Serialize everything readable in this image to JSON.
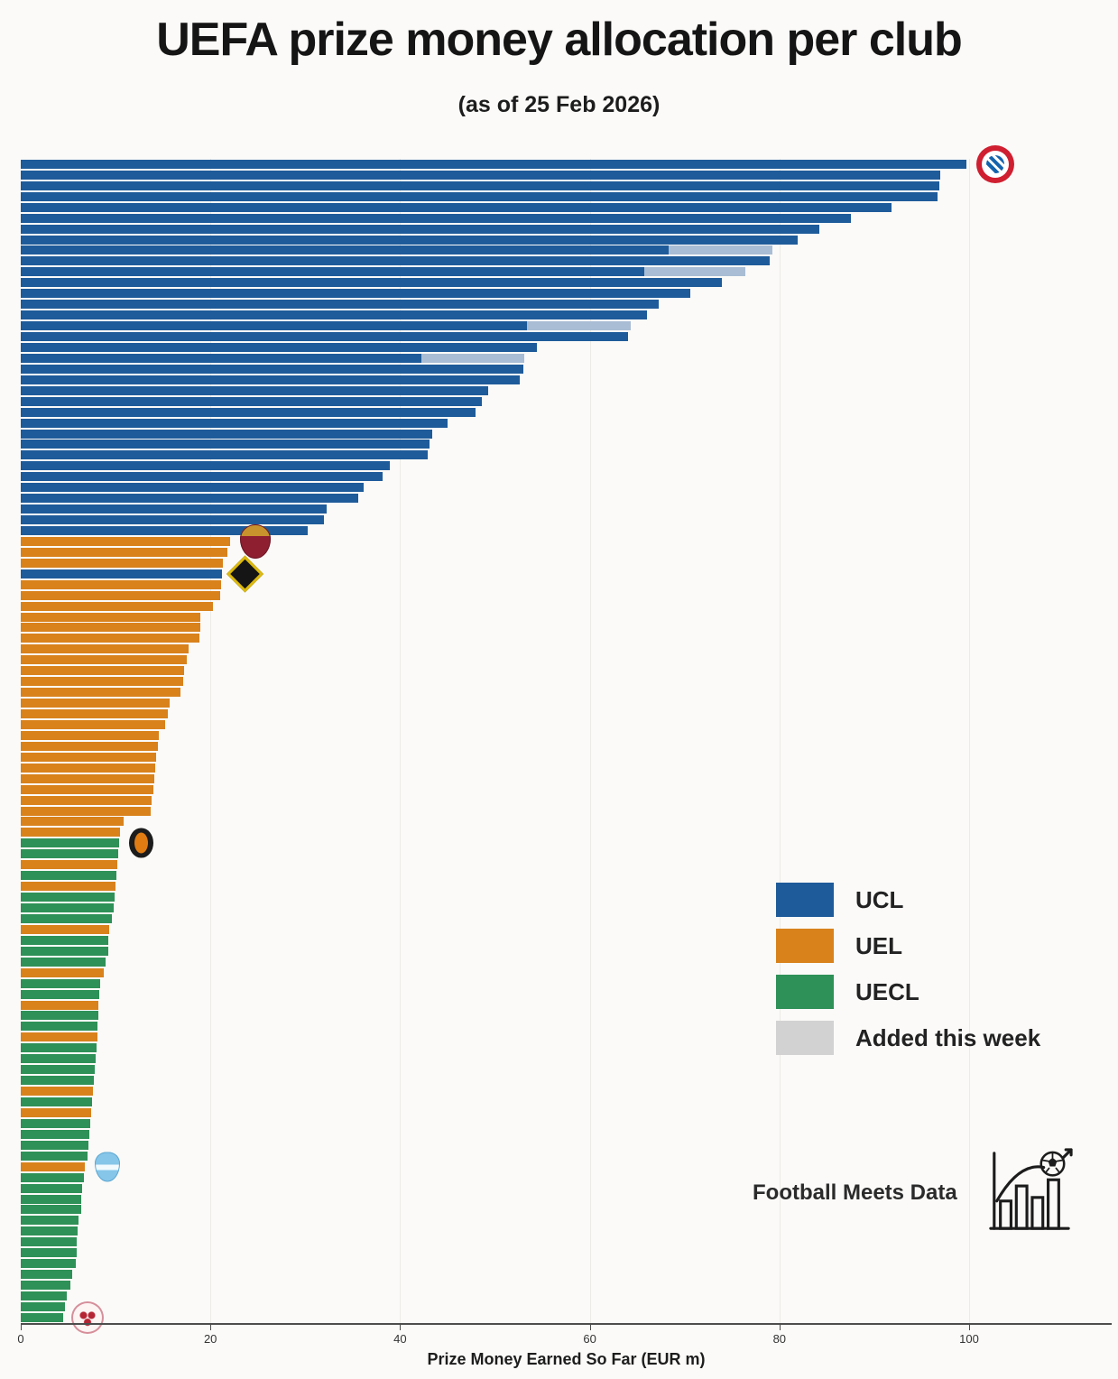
{
  "title": "UEFA prize money allocation per club",
  "subtitle": "(as of 25 Feb 2026)",
  "axis": {
    "label": "Prize Money Earned So Far (EUR m)",
    "ticks": [
      0,
      20,
      40,
      60,
      80,
      100
    ],
    "max": 115
  },
  "colors": {
    "ucl": "#1e5b9a",
    "uel": "#d9821c",
    "uecl": "#2e9157",
    "added": "#d2d2d2",
    "added_on_bar": "#a9bdd4"
  },
  "legend": [
    {
      "key": "ucl",
      "label": "UCL"
    },
    {
      "key": "uel",
      "label": "UEL"
    },
    {
      "key": "uecl",
      "label": "UECL"
    },
    {
      "key": "added",
      "label": "Added this week"
    }
  ],
  "credit": {
    "text": "Football Meets Data"
  },
  "chart_data": {
    "type": "bar",
    "orientation": "horizontal",
    "title": "UEFA prize money allocation per club",
    "subtitle": "(as of 25 Feb 2026)",
    "xlabel": "Prize Money Earned So Far (EUR m)",
    "xlim": [
      0,
      115
    ],
    "grid": "vertical-faint",
    "legend_position": "center-right",
    "series_note": "c = competition color key; v = total prize money (EUR m); b = value before this week's gray 'Added this week' segment; logo = club crest displayed beside bar",
    "bars": [
      {
        "c": "ucl",
        "v": 99.7,
        "logo": "bayern-munich"
      },
      {
        "c": "ucl",
        "v": 97.0
      },
      {
        "c": "ucl",
        "v": 96.9
      },
      {
        "c": "ucl",
        "v": 96.7
      },
      {
        "c": "ucl",
        "v": 91.8
      },
      {
        "c": "ucl",
        "v": 87.5
      },
      {
        "c": "ucl",
        "v": 84.2
      },
      {
        "c": "ucl",
        "v": 81.9
      },
      {
        "c": "ucl",
        "v": 79.3,
        "b": 68.3
      },
      {
        "c": "ucl",
        "v": 79.0
      },
      {
        "c": "ucl",
        "v": 76.4,
        "b": 65.7
      },
      {
        "c": "ucl",
        "v": 73.9
      },
      {
        "c": "ucl",
        "v": 70.6
      },
      {
        "c": "ucl",
        "v": 67.3
      },
      {
        "c": "ucl",
        "v": 66.0
      },
      {
        "c": "ucl",
        "v": 64.3,
        "b": 53.4
      },
      {
        "c": "ucl",
        "v": 64.0
      },
      {
        "c": "ucl",
        "v": 54.4
      },
      {
        "c": "ucl",
        "v": 53.1,
        "b": 42.2
      },
      {
        "c": "ucl",
        "v": 53.0
      },
      {
        "c": "ucl",
        "v": 52.6
      },
      {
        "c": "ucl",
        "v": 49.3
      },
      {
        "c": "ucl",
        "v": 48.6
      },
      {
        "c": "ucl",
        "v": 48.0
      },
      {
        "c": "ucl",
        "v": 45.0
      },
      {
        "c": "ucl",
        "v": 43.4
      },
      {
        "c": "ucl",
        "v": 43.1
      },
      {
        "c": "ucl",
        "v": 42.9
      },
      {
        "c": "ucl",
        "v": 38.9
      },
      {
        "c": "ucl",
        "v": 38.2
      },
      {
        "c": "ucl",
        "v": 36.2
      },
      {
        "c": "ucl",
        "v": 35.6
      },
      {
        "c": "ucl",
        "v": 32.3
      },
      {
        "c": "ucl",
        "v": 32.0
      },
      {
        "c": "ucl",
        "v": 30.3
      },
      {
        "c": "uel",
        "v": 22.1,
        "logo": "as-roma"
      },
      {
        "c": "uel",
        "v": 21.8
      },
      {
        "c": "uel",
        "v": 21.3
      },
      {
        "c": "ucl",
        "v": 21.2,
        "logo": "young-boys"
      },
      {
        "c": "uel",
        "v": 21.1
      },
      {
        "c": "uel",
        "v": 21.0
      },
      {
        "c": "uel",
        "v": 20.3
      },
      {
        "c": "uel",
        "v": 18.9
      },
      {
        "c": "uel",
        "v": 18.9
      },
      {
        "c": "uel",
        "v": 18.8
      },
      {
        "c": "uel",
        "v": 17.7
      },
      {
        "c": "uel",
        "v": 17.5
      },
      {
        "c": "uel",
        "v": 17.2
      },
      {
        "c": "uel",
        "v": 17.1
      },
      {
        "c": "uel",
        "v": 16.8
      },
      {
        "c": "uel",
        "v": 15.7
      },
      {
        "c": "uel",
        "v": 15.5
      },
      {
        "c": "uel",
        "v": 15.2
      },
      {
        "c": "uel",
        "v": 14.6
      },
      {
        "c": "uel",
        "v": 14.5
      },
      {
        "c": "uel",
        "v": 14.3
      },
      {
        "c": "uel",
        "v": 14.2
      },
      {
        "c": "uel",
        "v": 14.1
      },
      {
        "c": "uel",
        "v": 14.0
      },
      {
        "c": "uel",
        "v": 13.8
      },
      {
        "c": "uel",
        "v": 13.7
      },
      {
        "c": "uel",
        "v": 10.8
      },
      {
        "c": "uel",
        "v": 10.5
      },
      {
        "c": "uecl",
        "v": 10.4,
        "logo": "shakhtar-donetsk"
      },
      {
        "c": "uecl",
        "v": 10.3
      },
      {
        "c": "uel",
        "v": 10.2
      },
      {
        "c": "uecl",
        "v": 10.1
      },
      {
        "c": "uel",
        "v": 10.0
      },
      {
        "c": "uecl",
        "v": 9.9
      },
      {
        "c": "uecl",
        "v": 9.8
      },
      {
        "c": "uecl",
        "v": 9.6
      },
      {
        "c": "uel",
        "v": 9.3
      },
      {
        "c": "uecl",
        "v": 9.2
      },
      {
        "c": "uecl",
        "v": 9.2
      },
      {
        "c": "uecl",
        "v": 8.9
      },
      {
        "c": "uel",
        "v": 8.8
      },
      {
        "c": "uecl",
        "v": 8.4
      },
      {
        "c": "uecl",
        "v": 8.3
      },
      {
        "c": "uel",
        "v": 8.2
      },
      {
        "c": "uecl",
        "v": 8.2
      },
      {
        "c": "uecl",
        "v": 8.1
      },
      {
        "c": "uel",
        "v": 8.1
      },
      {
        "c": "uecl",
        "v": 8.0
      },
      {
        "c": "uecl",
        "v": 7.9
      },
      {
        "c": "uecl",
        "v": 7.8
      },
      {
        "c": "uecl",
        "v": 7.7
      },
      {
        "c": "uel",
        "v": 7.6
      },
      {
        "c": "uecl",
        "v": 7.5
      },
      {
        "c": "uel",
        "v": 7.4
      },
      {
        "c": "uecl",
        "v": 7.3
      },
      {
        "c": "uecl",
        "v": 7.2
      },
      {
        "c": "uecl",
        "v": 7.1
      },
      {
        "c": "uecl",
        "v": 7.0
      },
      {
        "c": "uel",
        "v": 6.8,
        "logo": "malmo-ff"
      },
      {
        "c": "uecl",
        "v": 6.7
      },
      {
        "c": "uecl",
        "v": 6.5
      },
      {
        "c": "uecl",
        "v": 6.4
      },
      {
        "c": "uecl",
        "v": 6.4
      },
      {
        "c": "uecl",
        "v": 6.1
      },
      {
        "c": "uecl",
        "v": 6.0
      },
      {
        "c": "uecl",
        "v": 5.9
      },
      {
        "c": "uecl",
        "v": 5.9
      },
      {
        "c": "uecl",
        "v": 5.8
      },
      {
        "c": "uecl",
        "v": 5.4
      },
      {
        "c": "uecl",
        "v": 5.2
      },
      {
        "c": "uecl",
        "v": 4.9
      },
      {
        "c": "uecl",
        "v": 4.7
      },
      {
        "c": "uecl",
        "v": 4.5,
        "logo": "red-white-club"
      }
    ]
  }
}
